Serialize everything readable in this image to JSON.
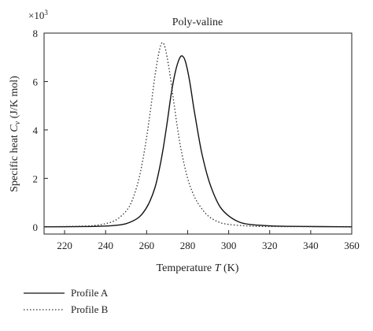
{
  "chart_data": {
    "type": "line",
    "title": "Poly-valine",
    "xlabel": "Temperature T (K)",
    "xlabel_main": "Temperature ",
    "xlabel_var": "T",
    "xlabel_unit": " (K)",
    "ylabel": "Specific heat C_v (J/K mol)",
    "ylabel_main": "Specific heat ",
    "ylabel_var": "C",
    "ylabel_sub": "v",
    "ylabel_unit": " (J/K mol)",
    "y_multiplier_base": "×10",
    "y_multiplier_exp": "3",
    "xlim": [
      210,
      360
    ],
    "ylim": [
      -0.3,
      8
    ],
    "x_ticks": [
      "220",
      "240",
      "260",
      "280",
      "300",
      "320",
      "340",
      "360"
    ],
    "y_ticks": [
      "0",
      "2",
      "4",
      "6",
      "8"
    ],
    "grid": false,
    "legend_position": "bottom-left outside",
    "series": [
      {
        "name": "Profile A",
        "style": "solid",
        "color": "#111111",
        "x": [
          210,
          230,
          240,
          245,
          250,
          255,
          258,
          261,
          264,
          266,
          268,
          270,
          272,
          274,
          276,
          277.5,
          279,
          281,
          283,
          285,
          287,
          290,
          293,
          296,
          300,
          305,
          310,
          320,
          330,
          360
        ],
        "y": [
          0,
          0.01,
          0.03,
          0.06,
          0.13,
          0.32,
          0.55,
          0.95,
          1.6,
          2.3,
          3.2,
          4.3,
          5.5,
          6.4,
          6.95,
          7.05,
          6.8,
          6.0,
          4.9,
          3.9,
          3.0,
          2.0,
          1.3,
          0.8,
          0.45,
          0.2,
          0.1,
          0.04,
          0.02,
          0
        ]
      },
      {
        "name": "Profile B",
        "style": "dotted",
        "color": "#333333",
        "x": [
          210,
          230,
          235,
          240,
          245,
          250,
          253,
          256,
          258,
          260,
          262,
          264,
          266,
          267.5,
          269,
          271,
          273,
          275,
          277,
          280,
          283,
          286,
          290,
          295,
          300,
          310,
          320,
          360
        ],
        "y": [
          0,
          0.03,
          0.06,
          0.13,
          0.28,
          0.65,
          1.1,
          1.9,
          2.7,
          3.7,
          4.9,
          6.2,
          7.2,
          7.6,
          7.4,
          6.5,
          5.3,
          4.1,
          3.1,
          2.0,
          1.3,
          0.85,
          0.45,
          0.2,
          0.1,
          0.03,
          0.01,
          0
        ]
      }
    ]
  }
}
